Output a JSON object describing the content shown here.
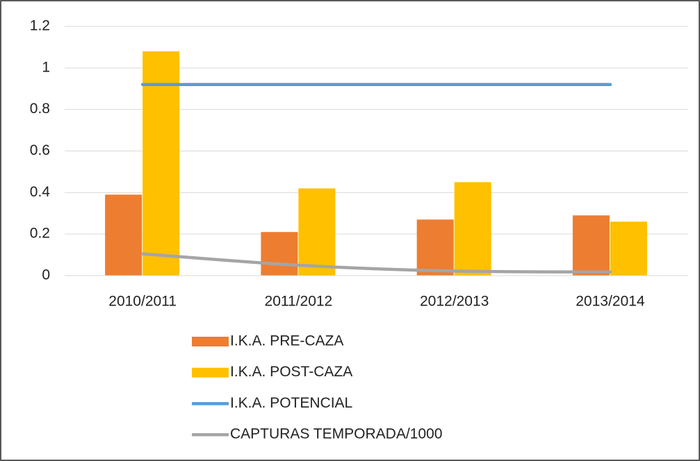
{
  "chart_data": {
    "type": "bar",
    "categories": [
      "2010/2011",
      "2011/2012",
      "2012/2013",
      "2013/2014"
    ],
    "series": [
      {
        "name": "I.K.A. PRE-CAZA",
        "color": "#ed7d31",
        "type": "bar",
        "values": [
          0.39,
          0.21,
          0.27,
          0.29
        ]
      },
      {
        "name": "I.K.A. POST-CAZA",
        "color": "#ffc000",
        "type": "bar",
        "values": [
          1.08,
          0.42,
          0.45,
          0.26
        ]
      },
      {
        "name": "I.K.A. POTENCIAL",
        "color": "#5b9bd5",
        "type": "line",
        "values": [
          0.92,
          0.92,
          0.92,
          0.92
        ]
      },
      {
        "name": "CAPTURAS TEMPORADA/1000",
        "color": "#a5a5a5",
        "type": "line",
        "values": [
          0.105,
          0.05,
          0.022,
          0.018
        ]
      }
    ],
    "ylim": [
      0,
      1.2
    ],
    "yticks": [
      0,
      0.2,
      0.4,
      0.6,
      0.8,
      1,
      1.2
    ],
    "grid": true,
    "legend": "bottom"
  }
}
